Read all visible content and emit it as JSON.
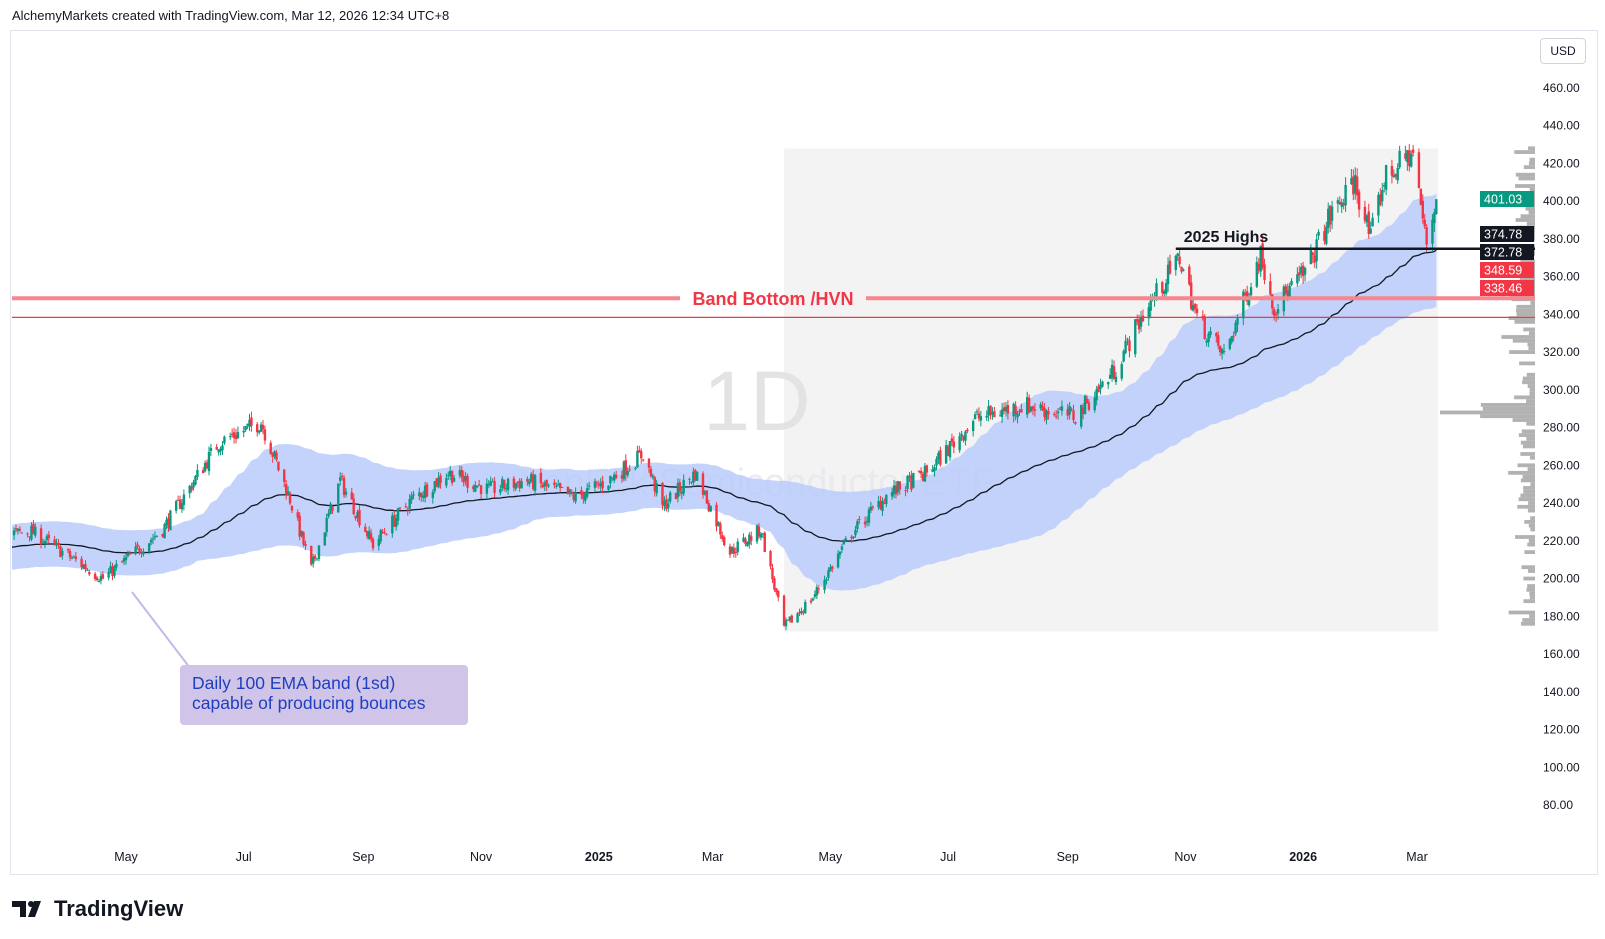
{
  "header": {
    "text": "AlchemyMarkets created with TradingView.com, Mar 12, 2026 12:34 UTC+8"
  },
  "logo": {
    "text": "TradingView"
  },
  "axis": {
    "currency": "USD"
  },
  "annotation": {
    "line1": "Daily 100 EMA band (1sd)",
    "line2": "capable of producing bounces"
  },
  "chart_data": {
    "type": "candlestick",
    "symbol": "VanEck Semiconductor ETF",
    "interval": "1D",
    "colors": {
      "up": "#089981",
      "down": "#f23645",
      "band": "#b9cbfa",
      "ema": "#131722",
      "levels": "#f23645"
    },
    "y_ticks": [
      460,
      440,
      420,
      400,
      380,
      360,
      340,
      320,
      300,
      280,
      260,
      240,
      220,
      200,
      180,
      160,
      140,
      120,
      100,
      80
    ],
    "ylim": [
      68,
      475
    ],
    "x_ticks": [
      {
        "date": "2024-05-01",
        "label": "May"
      },
      {
        "date": "2024-07-01",
        "label": "Jul"
      },
      {
        "date": "2024-09-01",
        "label": "Sep"
      },
      {
        "date": "2024-11-01",
        "label": "Nov"
      },
      {
        "date": "2025-01-01",
        "label": "2025",
        "bold": true
      },
      {
        "date": "2025-03-01",
        "label": "Mar"
      },
      {
        "date": "2025-05-01",
        "label": "May"
      },
      {
        "date": "2025-07-01",
        "label": "Jul"
      },
      {
        "date": "2025-09-01",
        "label": "Sep"
      },
      {
        "date": "2025-11-01",
        "label": "Nov"
      },
      {
        "date": "2026-01-01",
        "label": "2026",
        "bold": true
      },
      {
        "date": "2026-03-01",
        "label": "Mar"
      }
    ],
    "close_path": [
      [
        "2024-03-13",
        225
      ],
      [
        "2024-04-19",
        200
      ],
      [
        "2024-05-20",
        226
      ],
      [
        "2024-06-18",
        272
      ],
      [
        "2024-07-10",
        283
      ],
      [
        "2024-07-25",
        242
      ],
      [
        "2024-08-05",
        205
      ],
      [
        "2024-08-20",
        252
      ],
      [
        "2024-09-06",
        218
      ],
      [
        "2024-09-26",
        242
      ],
      [
        "2024-10-15",
        256
      ],
      [
        "2024-11-05",
        247
      ],
      [
        "2024-11-25",
        252
      ],
      [
        "2024-12-20",
        243
      ],
      [
        "2025-01-06",
        252
      ],
      [
        "2025-01-24",
        266
      ],
      [
        "2025-02-03",
        238
      ],
      [
        "2025-02-20",
        256
      ],
      [
        "2025-03-10",
        214
      ],
      [
        "2025-03-26",
        226
      ],
      [
        "2025-04-07",
        174
      ],
      [
        "2025-04-22",
        190
      ],
      [
        "2025-05-12",
        224
      ],
      [
        "2025-05-30",
        244
      ],
      [
        "2025-06-20",
        256
      ],
      [
        "2025-07-15",
        285
      ],
      [
        "2025-08-10",
        292
      ],
      [
        "2025-08-26",
        288
      ],
      [
        "2025-09-05",
        286
      ],
      [
        "2025-09-25",
        310
      ],
      [
        "2025-10-10",
        340
      ],
      [
        "2025-10-29",
        370
      ],
      [
        "2025-11-07",
        338
      ],
      [
        "2025-11-21",
        318
      ],
      [
        "2025-12-10",
        372
      ],
      [
        "2025-12-17",
        344
      ],
      [
        "2026-01-02",
        362
      ],
      [
        "2026-01-15",
        392
      ],
      [
        "2026-01-28",
        410
      ],
      [
        "2026-02-05",
        380
      ],
      [
        "2026-02-12",
        412
      ],
      [
        "2026-02-27",
        426
      ],
      [
        "2026-03-06",
        376
      ],
      [
        "2026-03-11",
        401.03
      ]
    ],
    "indicator": "EMA 100 with 1 standard deviation band",
    "highlight_range": {
      "from": "2025-04-07",
      "to": "2026-03-12",
      "price_low": 172,
      "price_high": 428
    },
    "levels": [
      {
        "price": 374.78,
        "label": "2025 Highs",
        "from": "2025-10-27",
        "style": "black"
      },
      {
        "price": 348.59,
        "label": "Band Bottom /HVN",
        "style": "red-thick"
      },
      {
        "price": 338.46,
        "label": "",
        "style": "red-thin"
      }
    ],
    "price_labels": [
      {
        "value": "401.03",
        "color": "#089981"
      },
      {
        "value": "374.78",
        "color": "#131722"
      },
      {
        "value": "372.78",
        "color": "#131722"
      },
      {
        "value": "348.59",
        "color": "#f23645"
      },
      {
        "value": "338.46",
        "color": "#f23645"
      }
    ]
  }
}
